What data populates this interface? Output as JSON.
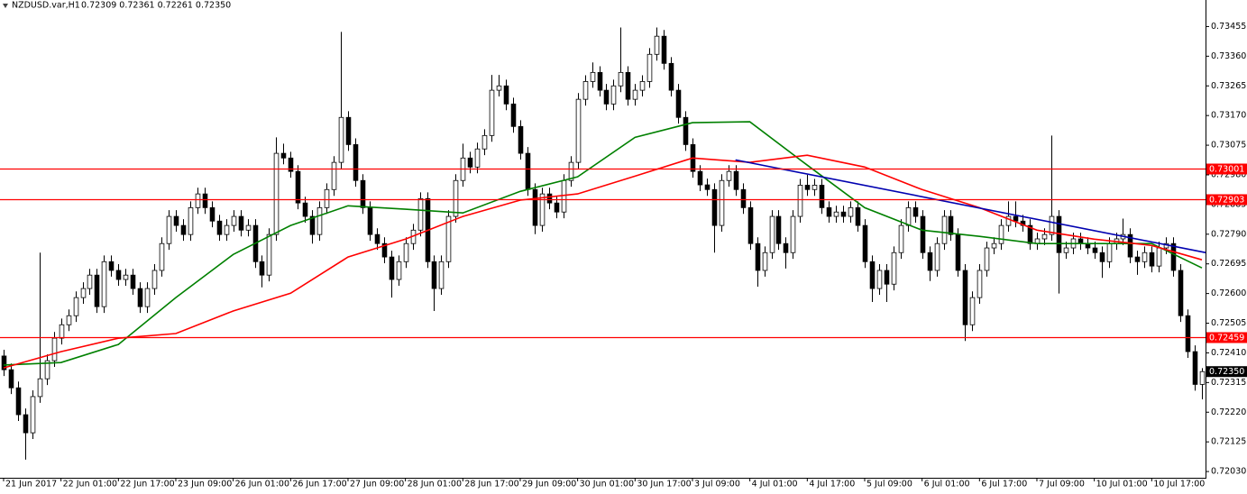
{
  "chart_data": {
    "type": "candlestick",
    "title": "NZDUSD.var,H1",
    "subtitle": "0.72309 0.72361 0.72261 0.72350",
    "xlim": [
      -0.5,
      167.5
    ],
    "ylim": [
      0.7201,
      0.7354
    ],
    "yticks": [
      0.73455,
      {
        "value": 0.7336,
        "label": "0.73360"
      },
      0.73265,
      {
        "value": 0.7317,
        "label": "0.73170"
      },
      0.73075,
      {
        "value": 0.7298,
        "label": "0.72980"
      },
      0.72885,
      {
        "value": 0.7279,
        "label": "0.72790"
      },
      0.72695,
      {
        "value": 0.726,
        "label": "0.72600"
      },
      0.72505,
      {
        "value": 0.7241,
        "label": "0.72410"
      },
      0.72315,
      {
        "value": 0.7222,
        "label": "0.72220"
      },
      0.72125,
      {
        "value": 0.7203,
        "label": "0.72030"
      }
    ],
    "xticks": [
      {
        "value": 0,
        "label": "21 Jun 2017"
      },
      {
        "value": 8,
        "label": "22 Jun 01:00"
      },
      {
        "value": 16,
        "label": "22 Jun 17:00"
      },
      {
        "value": 24,
        "label": "23 Jun 09:00"
      },
      {
        "value": 32,
        "label": "26 Jun 01:00"
      },
      {
        "value": 40,
        "label": "26 Jun 17:00"
      },
      {
        "value": 48,
        "label": "27 Jun 09:00"
      },
      {
        "value": 56,
        "label": "28 Jun 01:00"
      },
      {
        "value": 64,
        "label": "28 Jun 17:00"
      },
      {
        "value": 72,
        "label": "29 Jun 09:00"
      },
      {
        "value": 80,
        "label": "30 Jun 01:00"
      },
      {
        "value": 88,
        "label": "30 Jun 17:00"
      },
      {
        "value": 96,
        "label": "3 Jul 09:00"
      },
      {
        "value": 104,
        "label": "4 Jul 01:00"
      },
      {
        "value": 112,
        "label": "4 Jul 17:00"
      },
      {
        "value": 120,
        "label": "5 Jul 09:00"
      },
      {
        "value": 128,
        "label": "6 Jul 01:00"
      },
      {
        "value": 136,
        "label": "6 Jul 17:00"
      },
      {
        "value": 144,
        "label": "7 Jul 09:00"
      },
      {
        "value": 152,
        "label": "10 Jul 01:00"
      },
      {
        "value": 160,
        "label": "10 Jul 17:00"
      }
    ],
    "open": [
      0.724,
      0.72356,
      0.72298,
      0.72212,
      0.72154,
      0.7227,
      0.72327,
      0.72385,
      0.72457,
      0.725,
      0.72529,
      0.72587,
      0.72616,
      0.72659,
      0.72558,
      0.72702,
      0.72674,
      0.72645,
      0.72659,
      0.72616,
      0.72558,
      0.72616,
      0.72674,
      0.7276,
      0.72847,
      0.72818,
      0.72789,
      0.72875,
      0.72919,
      0.72875,
      0.72832,
      0.72789,
      0.72818,
      0.72847,
      0.72803,
      0.72818,
      0.72702,
      0.72659,
      0.72789,
      0.73049,
      0.73034,
      0.72991,
      0.7289,
      0.72847,
      0.72789,
      0.72875,
      0.72933,
      0.7302,
      0.73164,
      0.73077,
      0.72962,
      0.72875,
      0.72789,
      0.7276,
      0.72717,
      0.72645,
      0.72702,
      0.7276,
      0.72803,
      0.72904,
      0.72702,
      0.72616,
      0.72702,
      0.72847,
      0.72962,
      0.73034,
      0.73005,
      0.73063,
      0.73106,
      0.73251,
      0.73265,
      0.73207,
      0.73135,
      0.73049,
      0.72933,
      0.72818,
      0.72919,
      0.7289,
      0.72861,
      0.72962,
      0.7302,
      0.73222,
      0.73279,
      0.73308,
      0.73251,
      0.73207,
      0.73265,
      0.73308,
      0.73222,
      0.73251,
      0.73279,
      0.73366,
      0.73424,
      0.73337,
      0.73251,
      0.73164,
      0.73077,
      0.72991,
      0.72948,
      0.72933,
      0.72818,
      0.72962,
      0.72991,
      0.72933,
      0.72875,
      0.7276,
      0.72674,
      0.72731,
      0.72847,
      0.7276,
      0.72731,
      0.72847,
      0.72947,
      0.72933,
      0.72947,
      0.72875,
      0.72847,
      0.72861,
      0.72847,
      0.72875,
      0.72818,
      0.72702,
      0.72616,
      0.72674,
      0.7263,
      0.72731,
      0.72818,
      0.72875,
      0.72847,
      0.72731,
      0.72674,
      0.7276,
      0.72847,
      0.72789,
      0.72674,
      0.725,
      0.72587,
      0.72674,
      0.72746,
      0.7276,
      0.72818,
      0.72847,
      0.72832,
      0.72818,
      0.7276,
      0.72775,
      0.72789,
      0.72847,
      0.72731,
      0.72746,
      0.72775,
      0.7276,
      0.72746,
      0.72731,
      0.72702,
      0.7276,
      0.72775,
      0.72789,
      0.72717,
      0.72702,
      0.72731,
      0.72688,
      0.72746,
      0.7276,
      0.72674,
      0.72529,
      0.72414,
      0.72309
    ],
    "high": [
      0.7242,
      0.72376,
      0.72318,
      0.72232,
      0.7229,
      0.72731,
      0.72405,
      0.72477,
      0.7252,
      0.72549,
      0.72607,
      0.72636,
      0.72679,
      0.72679,
      0.72722,
      0.72722,
      0.72694,
      0.72679,
      0.72679,
      0.72636,
      0.72636,
      0.72694,
      0.7278,
      0.72867,
      0.72867,
      0.72838,
      0.72895,
      0.72939,
      0.72939,
      0.72895,
      0.72852,
      0.72838,
      0.72867,
      0.72867,
      0.72838,
      0.72838,
      0.72722,
      0.72809,
      0.731,
      0.7308,
      0.73054,
      0.73011,
      0.7291,
      0.72867,
      0.72895,
      0.72953,
      0.7304,
      0.73438,
      0.73184,
      0.73097,
      0.72982,
      0.72895,
      0.72809,
      0.7278,
      0.72737,
      0.72722,
      0.7278,
      0.72823,
      0.72924,
      0.72924,
      0.72722,
      0.72722,
      0.72867,
      0.72982,
      0.7308,
      0.73054,
      0.73083,
      0.73126,
      0.733,
      0.733,
      0.73285,
      0.73227,
      0.73155,
      0.73069,
      0.72953,
      0.72939,
      0.72939,
      0.7291,
      0.72982,
      0.7304,
      0.73242,
      0.73299,
      0.7334,
      0.73328,
      0.73271,
      0.73285,
      0.73452,
      0.73328,
      0.73271,
      0.73299,
      0.73386,
      0.73452,
      0.73444,
      0.73357,
      0.73271,
      0.73184,
      0.73097,
      0.73011,
      0.72968,
      0.72953,
      0.72982,
      0.73011,
      0.73011,
      0.72953,
      0.72895,
      0.7278,
      0.72751,
      0.72867,
      0.72867,
      0.7278,
      0.72867,
      0.72967,
      0.7298,
      0.72967,
      0.72967,
      0.72895,
      0.72881,
      0.72881,
      0.72895,
      0.72895,
      0.72838,
      0.72722,
      0.72694,
      0.72694,
      0.72751,
      0.72838,
      0.72895,
      0.72895,
      0.72867,
      0.72751,
      0.7278,
      0.72867,
      0.72867,
      0.72809,
      0.72694,
      0.72607,
      0.72694,
      0.72766,
      0.7278,
      0.72838,
      0.72895,
      0.72895,
      0.72852,
      0.72838,
      0.72795,
      0.72809,
      0.73106,
      0.72867,
      0.72766,
      0.72795,
      0.72795,
      0.7278,
      0.72766,
      0.72751,
      0.7278,
      0.72795,
      0.7284,
      0.72809,
      0.72737,
      0.72751,
      0.72751,
      0.72766,
      0.7278,
      0.7278,
      0.72694,
      0.72549,
      0.72434,
      0.72361
    ],
    "low": [
      0.72336,
      0.72278,
      0.72192,
      0.72068,
      0.72134,
      0.7225,
      0.72307,
      0.72365,
      0.72437,
      0.7248,
      0.72509,
      0.72567,
      0.72596,
      0.72538,
      0.72538,
      0.72654,
      0.72625,
      0.72625,
      0.72596,
      0.72538,
      0.72538,
      0.72596,
      0.72654,
      0.7274,
      0.72798,
      0.72769,
      0.72769,
      0.72855,
      0.72855,
      0.72812,
      0.72769,
      0.72769,
      0.72798,
      0.72783,
      0.72783,
      0.72682,
      0.7262,
      0.72639,
      0.72769,
      0.73014,
      0.72971,
      0.7287,
      0.72827,
      0.7276,
      0.72769,
      0.72855,
      0.72913,
      0.73,
      0.73057,
      0.72942,
      0.72855,
      0.72769,
      0.7274,
      0.72697,
      0.72587,
      0.72625,
      0.72682,
      0.7274,
      0.72783,
      0.72682,
      0.72544,
      0.72596,
      0.72682,
      0.72827,
      0.72942,
      0.72985,
      0.72985,
      0.73043,
      0.73086,
      0.73231,
      0.73187,
      0.73115,
      0.73029,
      0.72913,
      0.7279,
      0.72798,
      0.7287,
      0.72841,
      0.72841,
      0.72942,
      0.73,
      0.73202,
      0.73259,
      0.73231,
      0.73187,
      0.73187,
      0.73245,
      0.73202,
      0.73202,
      0.73231,
      0.73259,
      0.73346,
      0.73317,
      0.73231,
      0.73144,
      0.73057,
      0.72971,
      0.72928,
      0.72913,
      0.72731,
      0.72798,
      0.72942,
      0.72913,
      0.72855,
      0.7274,
      0.72622,
      0.72654,
      0.72711,
      0.7274,
      0.7268,
      0.72711,
      0.72827,
      0.72913,
      0.72913,
      0.72855,
      0.72827,
      0.72827,
      0.72827,
      0.72827,
      0.72798,
      0.72682,
      0.72573,
      0.72596,
      0.72573,
      0.7261,
      0.72711,
      0.72798,
      0.72827,
      0.72711,
      0.7264,
      0.72654,
      0.7274,
      0.72769,
      0.72654,
      0.72448,
      0.7248,
      0.72567,
      0.72654,
      0.72726,
      0.7274,
      0.72798,
      0.72812,
      0.72798,
      0.7274,
      0.7274,
      0.72755,
      0.72769,
      0.726,
      0.72711,
      0.72726,
      0.7274,
      0.72726,
      0.72711,
      0.7265,
      0.72682,
      0.7274,
      0.72755,
      0.72697,
      0.7266,
      0.72682,
      0.72668,
      0.72668,
      0.72726,
      0.72654,
      0.72509,
      0.72394,
      0.72289,
      0.72261
    ],
    "close": [
      0.72356,
      0.72298,
      0.72212,
      0.72154,
      0.7227,
      0.72327,
      0.72385,
      0.72457,
      0.725,
      0.72529,
      0.72587,
      0.72616,
      0.72659,
      0.72558,
      0.72702,
      0.72674,
      0.72645,
      0.72659,
      0.72616,
      0.72558,
      0.72616,
      0.72674,
      0.7276,
      0.72847,
      0.72818,
      0.72789,
      0.72875,
      0.72919,
      0.72875,
      0.72832,
      0.72789,
      0.72818,
      0.72847,
      0.72803,
      0.72818,
      0.72702,
      0.72659,
      0.72789,
      0.73049,
      0.73034,
      0.72991,
      0.7289,
      0.72847,
      0.72789,
      0.72875,
      0.72933,
      0.7302,
      0.73164,
      0.73077,
      0.72962,
      0.72875,
      0.72789,
      0.7276,
      0.72717,
      0.72645,
      0.72702,
      0.7276,
      0.72803,
      0.72904,
      0.72702,
      0.72616,
      0.72702,
      0.72847,
      0.72962,
      0.73034,
      0.73005,
      0.73063,
      0.73106,
      0.73251,
      0.73265,
      0.73207,
      0.73135,
      0.73049,
      0.72933,
      0.72818,
      0.72919,
      0.7289,
      0.72861,
      0.72962,
      0.7302,
      0.73222,
      0.73279,
      0.73308,
      0.73251,
      0.73207,
      0.73265,
      0.73308,
      0.73222,
      0.73251,
      0.73279,
      0.73366,
      0.73424,
      0.73337,
      0.73251,
      0.73164,
      0.73077,
      0.72991,
      0.72948,
      0.72933,
      0.72818,
      0.72962,
      0.72991,
      0.72933,
      0.72875,
      0.7276,
      0.72674,
      0.72731,
      0.72847,
      0.7276,
      0.72731,
      0.72847,
      0.72947,
      0.72933,
      0.72947,
      0.72875,
      0.72847,
      0.72861,
      0.72847,
      0.72875,
      0.72818,
      0.72702,
      0.72616,
      0.72674,
      0.7263,
      0.72731,
      0.72818,
      0.72875,
      0.72847,
      0.72731,
      0.72674,
      0.7276,
      0.72847,
      0.72789,
      0.72674,
      0.725,
      0.72587,
      0.72674,
      0.72746,
      0.7276,
      0.72818,
      0.72847,
      0.72832,
      0.72818,
      0.7276,
      0.72775,
      0.72789,
      0.72847,
      0.72731,
      0.72746,
      0.72775,
      0.7276,
      0.72746,
      0.72731,
      0.72702,
      0.7276,
      0.72775,
      0.72789,
      0.72717,
      0.72702,
      0.72731,
      0.72688,
      0.72746,
      0.7276,
      0.72674,
      0.72529,
      0.72414,
      0.72309,
      0.7235
    ],
    "bull_color": "#ffffff",
    "bear_color": "#000000",
    "wick_color": "#000000",
    "overlays": [
      {
        "color": "#008000",
        "x": [
          0,
          8,
          16,
          24,
          32,
          40,
          48,
          56,
          64,
          72,
          80,
          88,
          96,
          104,
          112,
          120,
          128,
          136,
          144,
          152,
          160,
          167
        ],
        "values": [
          0.72371,
          0.72379,
          0.72437,
          0.72587,
          0.72725,
          0.72818,
          0.72881,
          0.7287,
          0.72858,
          0.72927,
          0.72974,
          0.731,
          0.73147,
          0.7315,
          0.73011,
          0.72875,
          0.72803,
          0.72783,
          0.7276,
          0.7276,
          0.7276,
          0.72682
        ]
      },
      {
        "color": "#ff0000",
        "x": [
          0,
          8,
          16,
          24,
          32,
          40,
          48,
          56,
          64,
          72,
          80,
          88,
          96,
          104,
          112,
          120,
          128,
          136,
          144,
          152,
          160,
          167
        ],
        "values": [
          0.72362,
          0.72414,
          0.72457,
          0.72472,
          0.72544,
          0.72601,
          0.72717,
          0.72774,
          0.72847,
          0.72899,
          0.72919,
          0.72976,
          0.73034,
          0.7302,
          0.73043,
          0.73005,
          0.72933,
          0.72875,
          0.72803,
          0.72774,
          0.72754,
          0.72708
        ]
      },
      {
        "color": "#0000b0",
        "x": [
          102,
          167.5
        ],
        "values": [
          0.73028,
          0.72731
        ]
      }
    ],
    "levels": [
      {
        "value": 0.73001,
        "color": "#ff0000"
      },
      {
        "value": 0.72903,
        "color": "#ff0000"
      },
      {
        "value": 0.72459,
        "color": "#ff0000"
      }
    ],
    "price_label": {
      "value": 0.7235,
      "label": "0.72350"
    }
  }
}
